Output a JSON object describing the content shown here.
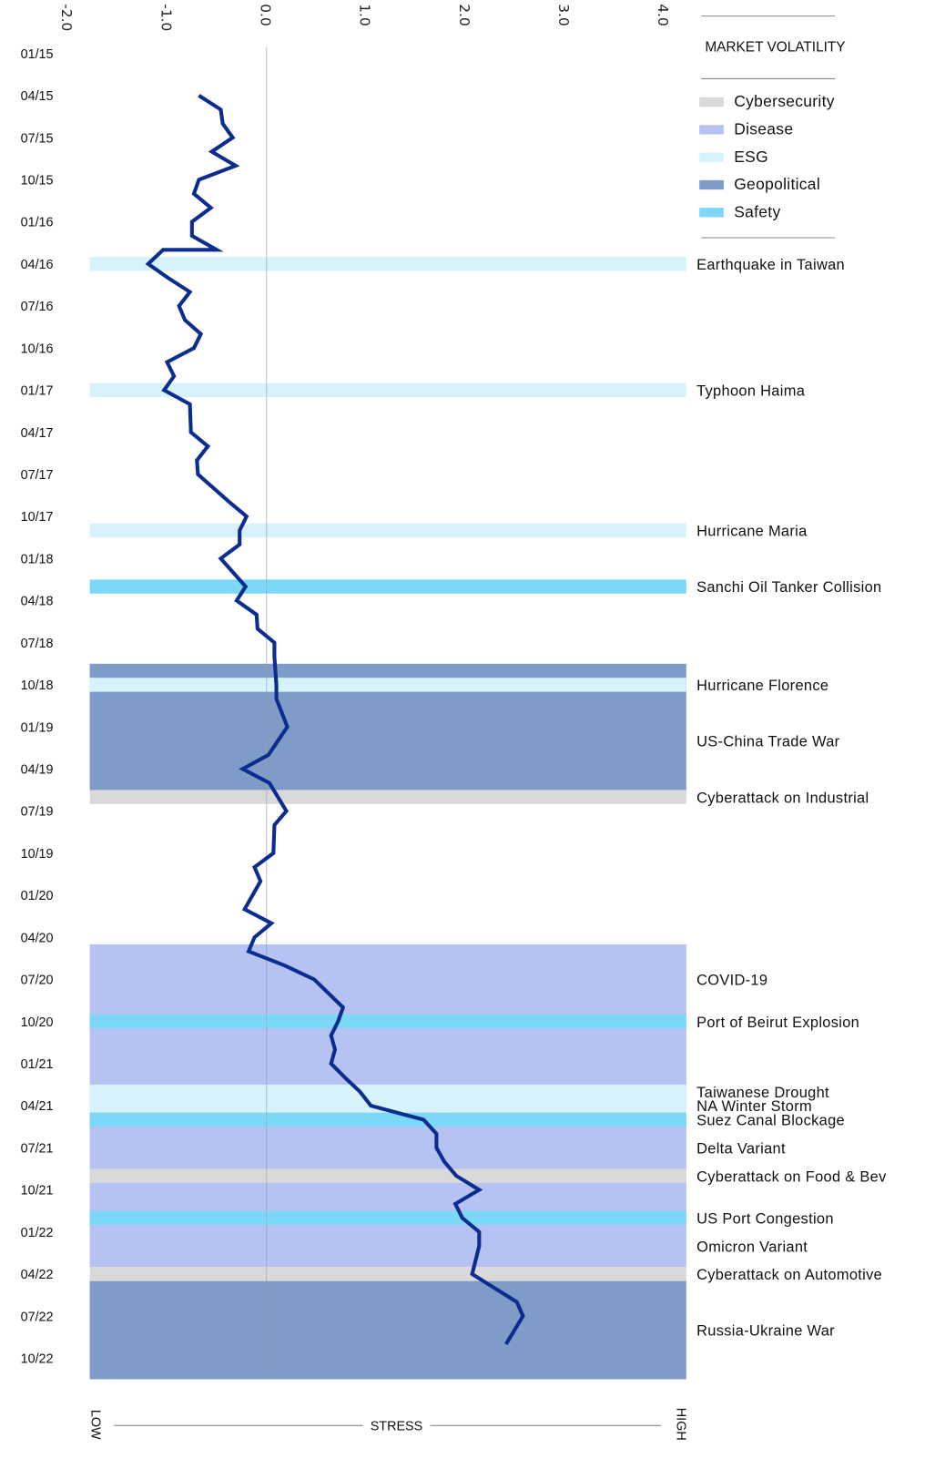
{
  "chart_data": {
    "type": "line",
    "orientation": "vertical-time",
    "legend": {
      "title": "MARKET VOLATILITY",
      "position": "top-right",
      "items": [
        {
          "label": "Cybersecurity",
          "color": "#d9d9d9"
        },
        {
          "label": "Disease",
          "color": "#b5c2f2"
        },
        {
          "label": "ESG",
          "color": "#d6f3fc"
        },
        {
          "label": "Geopolitical",
          "color": "#7f9bc8"
        },
        {
          "label": "Safety",
          "color": "#7dd8f7"
        }
      ]
    },
    "value_axis": {
      "ticks": [
        "-2.0",
        "-1.0",
        "0.0",
        "1.0",
        "2.0",
        "3.0",
        "4.0"
      ],
      "range": [
        -2.0,
        4.0
      ],
      "low_label": "LOW",
      "center_label": "STRESS",
      "high_label": "HIGH"
    },
    "date_axis": {
      "ticks": [
        "01/15",
        "04/15",
        "07/15",
        "10/15",
        "01/16",
        "04/16",
        "07/16",
        "10/16",
        "01/17",
        "04/17",
        "07/17",
        "10/17",
        "01/18",
        "04/18",
        "07/18",
        "10/18",
        "01/19",
        "04/19",
        "07/19",
        "10/19",
        "01/20",
        "04/20",
        "07/20",
        "10/20",
        "01/21",
        "04/21",
        "07/21",
        "10/21",
        "01/22",
        "04/22",
        "07/22",
        "10/22"
      ],
      "range": [
        "2015-01",
        "2022-10"
      ]
    },
    "line_color": "#0a2d8f",
    "series": [
      {
        "points": [
          [
            "2015-04",
            -0.68
          ],
          [
            "2015-05",
            -0.46
          ],
          [
            "2015-06",
            -0.44
          ],
          [
            "2015-07",
            -0.34
          ],
          [
            "2015-08",
            -0.55
          ],
          [
            "2015-09",
            -0.31
          ],
          [
            "2015-10",
            -0.68
          ],
          [
            "2015-11",
            -0.73
          ],
          [
            "2015-12",
            -0.56
          ],
          [
            "2016-01",
            -0.75
          ],
          [
            "2016-02",
            -0.75
          ],
          [
            "2016-03",
            -0.5
          ],
          [
            "2016-03",
            -1.04
          ],
          [
            "2016-04",
            -1.19
          ],
          [
            "2016-05",
            -0.99
          ],
          [
            "2016-06",
            -0.77
          ],
          [
            "2016-07",
            -0.88
          ],
          [
            "2016-08",
            -0.82
          ],
          [
            "2016-09",
            -0.66
          ],
          [
            "2016-10",
            -0.73
          ],
          [
            "2016-11",
            -1.0
          ],
          [
            "2016-12",
            -0.93
          ],
          [
            "2017-01",
            -1.03
          ],
          [
            "2017-02",
            -0.77
          ],
          [
            "2017-04",
            -0.76
          ],
          [
            "2017-05",
            -0.59
          ],
          [
            "2017-06",
            -0.7
          ],
          [
            "2017-07",
            -0.69
          ],
          [
            "2017-08",
            -0.53
          ],
          [
            "2017-09",
            -0.37
          ],
          [
            "2017-10",
            -0.2
          ],
          [
            "2017-11",
            -0.27
          ],
          [
            "2017-12",
            -0.27
          ],
          [
            "2018-01",
            -0.46
          ],
          [
            "2018-03",
            -0.21
          ],
          [
            "2018-04",
            -0.3
          ],
          [
            "2018-05",
            -0.1
          ],
          [
            "2018-06",
            -0.09
          ],
          [
            "2018-07",
            0.08
          ],
          [
            "2018-08",
            0.08
          ],
          [
            "2018-10",
            0.1
          ],
          [
            "2018-11",
            0.1
          ],
          [
            "2019-01",
            0.21
          ],
          [
            "2019-03",
            0.02
          ],
          [
            "2019-04",
            -0.24
          ],
          [
            "2019-05",
            0.03
          ],
          [
            "2019-07",
            0.2
          ],
          [
            "2019-08",
            0.08
          ],
          [
            "2019-10",
            0.07
          ],
          [
            "2019-11",
            -0.12
          ],
          [
            "2019-12",
            -0.06
          ],
          [
            "2020-02",
            -0.22
          ],
          [
            "2020-03",
            0.05
          ],
          [
            "2020-04",
            -0.12
          ],
          [
            "2020-05",
            -0.18
          ],
          [
            "2020-06",
            0.18
          ],
          [
            "2020-07",
            0.48
          ],
          [
            "2020-09",
            0.77
          ],
          [
            "2020-10",
            0.72
          ],
          [
            "2020-11",
            0.65
          ],
          [
            "2020-12",
            0.69
          ],
          [
            "2021-01",
            0.65
          ],
          [
            "2021-02",
            0.79
          ],
          [
            "2021-03",
            0.94
          ],
          [
            "2021-04",
            1.05
          ],
          [
            "2021-05",
            1.58
          ],
          [
            "2021-06",
            1.71
          ],
          [
            "2021-07",
            1.71
          ],
          [
            "2021-08",
            1.79
          ],
          [
            "2021-09",
            1.91
          ],
          [
            "2021-10",
            2.14
          ],
          [
            "2021-11",
            1.9
          ],
          [
            "2021-12",
            1.97
          ],
          [
            "2022-01",
            2.14
          ],
          [
            "2022-02",
            2.14
          ],
          [
            "2022-04",
            2.07
          ],
          [
            "2022-06",
            2.52
          ],
          [
            "2022-07",
            2.58
          ],
          [
            "2022-09",
            2.41
          ]
        ]
      }
    ],
    "bands": [
      {
        "category": "ESG",
        "start": "2016-04",
        "end": "2016-04"
      },
      {
        "category": "ESG",
        "start": "2017-01",
        "end": "2017-01"
      },
      {
        "category": "ESG",
        "start": "2017-11",
        "end": "2017-11"
      },
      {
        "category": "Safety",
        "start": "2018-03",
        "end": "2018-03"
      },
      {
        "category": "Geopolitical",
        "start": "2018-09",
        "end": "2019-05"
      },
      {
        "category": "ESG",
        "start": "2018-10",
        "end": "2018-10"
      },
      {
        "category": "Cybersecurity",
        "start": "2019-06",
        "end": "2019-06"
      },
      {
        "category": "Disease",
        "start": "2020-05",
        "end": "2022-03"
      },
      {
        "category": "Safety",
        "start": "2020-10",
        "end": "2020-10"
      },
      {
        "category": "ESG",
        "start": "2021-03",
        "end": "2021-04"
      },
      {
        "category": "Safety",
        "start": "2021-05",
        "end": "2021-05"
      },
      {
        "category": "Cybersecurity",
        "start": "2021-09",
        "end": "2021-09"
      },
      {
        "category": "Safety",
        "start": "2021-12",
        "end": "2021-12"
      },
      {
        "category": "Cybersecurity",
        "start": "2022-04",
        "end": "2022-04"
      },
      {
        "category": "Geopolitical",
        "start": "2022-05",
        "end": "2022-11"
      }
    ],
    "events": [
      {
        "label": "Earthquake in Taiwan",
        "date": "2016-04"
      },
      {
        "label": "Typhoon Haima",
        "date": "2017-01"
      },
      {
        "label": "Hurricane Maria",
        "date": "2017-11"
      },
      {
        "label": "Sanchi Oil Tanker Collision",
        "date": "2018-03"
      },
      {
        "label": "Hurricane Florence",
        "date": "2018-10"
      },
      {
        "label": "US-China Trade War",
        "date": "2019-02"
      },
      {
        "label": "Cyberattack on Industrial",
        "date": "2019-06"
      },
      {
        "label": "COVID-19",
        "date": "2020-07"
      },
      {
        "label": "Port of Beirut Explosion",
        "date": "2020-10"
      },
      {
        "label": "Taiwanese Drought",
        "date": "2021-03"
      },
      {
        "label": "NA Winter Storm",
        "date": "2021-04"
      },
      {
        "label": "Suez Canal Blockage",
        "date": "2021-05"
      },
      {
        "label": "Delta Variant",
        "date": "2021-07"
      },
      {
        "label": "Cyberattack on Food & Bev",
        "date": "2021-09"
      },
      {
        "label": "US Port Congestion",
        "date": "2021-12"
      },
      {
        "label": "Omicron Variant",
        "date": "2022-02"
      },
      {
        "label": "Cyberattack on Automotive",
        "date": "2022-04"
      },
      {
        "label": "Russia-Ukraine War",
        "date": "2022-08"
      }
    ]
  }
}
